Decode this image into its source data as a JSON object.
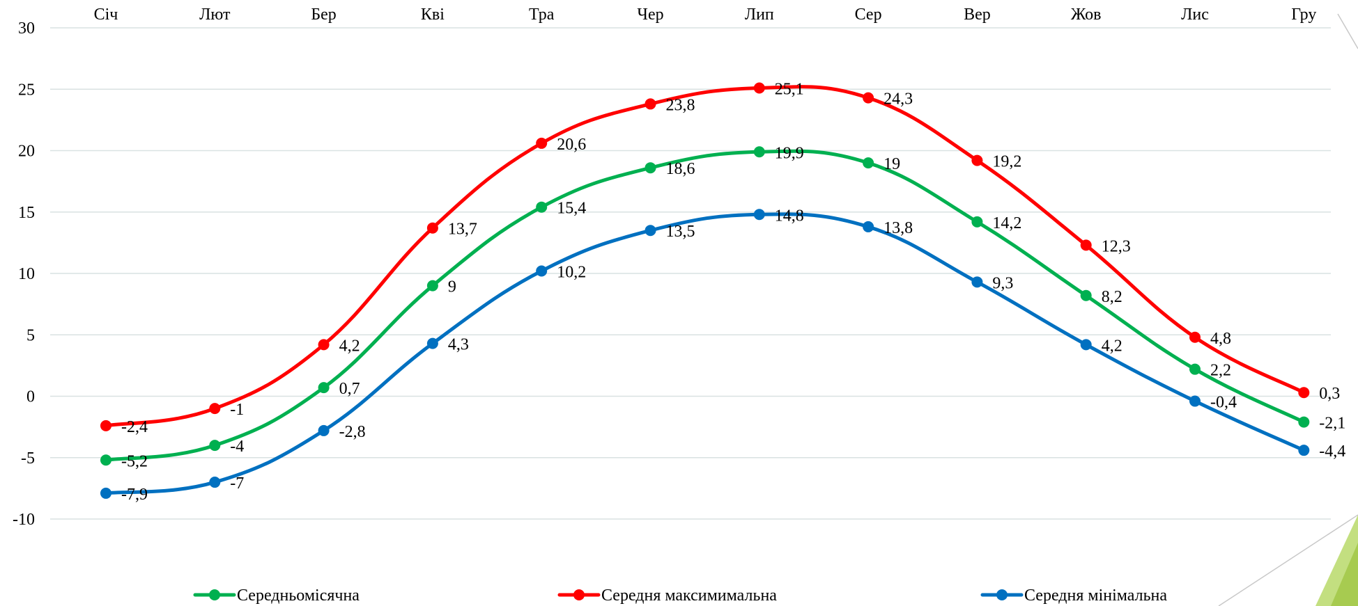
{
  "chart_data": {
    "type": "line",
    "categories": [
      "Січ",
      "Лют",
      "Бер",
      "Кві",
      "Тра",
      "Чер",
      "Лип",
      "Сер",
      "Вер",
      "Жов",
      "Лис",
      "Гру"
    ],
    "ylim": [
      -10,
      30
    ],
    "yticks": [
      30,
      25,
      20,
      15,
      10,
      5,
      0,
      -5,
      -10
    ],
    "grid": true,
    "legend_position": "bottom",
    "series": [
      {
        "name": "Середня максимимальна",
        "color": "#ff0000",
        "values": [
          -2.4,
          -1,
          4.2,
          13.7,
          20.6,
          23.8,
          25.1,
          24.3,
          19.2,
          12.3,
          4.8,
          0.3
        ],
        "labels": [
          "-2,4",
          "-1",
          "4,2",
          "13,7",
          "20,6",
          "23,8",
          "25,1",
          "24,3",
          "19,2",
          "12,3",
          "4,8",
          "0,3"
        ]
      },
      {
        "name": "Середньомісячна",
        "color": "#00b050",
        "values": [
          -5.2,
          -4,
          0.7,
          9,
          15.4,
          18.6,
          19.9,
          19,
          14.2,
          8.2,
          2.2,
          -2.1
        ],
        "labels": [
          "-5,2",
          "-4",
          "0,7",
          "9",
          "15,4",
          "18,6",
          "19,9",
          "19",
          "14,2",
          "8,2",
          "2,2",
          "-2,1"
        ]
      },
      {
        "name": "Середня мінімальна",
        "color": "#0070c0",
        "values": [
          -7.9,
          -7,
          -2.8,
          4.3,
          10.2,
          13.5,
          14.8,
          13.8,
          9.3,
          4.2,
          -0.4,
          -4.4
        ],
        "labels": [
          "-7,9",
          "-7",
          "-2,8",
          "4,3",
          "10,2",
          "13,5",
          "14,8",
          "13,8",
          "9,3",
          "4,2",
          "-0,4",
          "-4,4"
        ]
      }
    ],
    "legend_order": [
      "Середньомісячна",
      "Середня максимимальна",
      "Середня мінімальна"
    ]
  }
}
